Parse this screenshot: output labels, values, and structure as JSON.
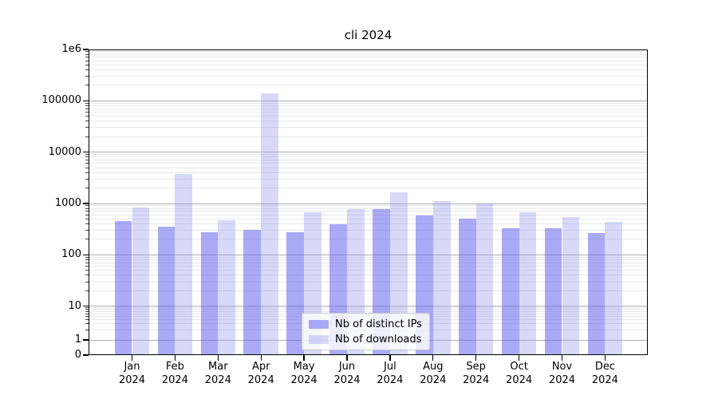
{
  "chart_data": {
    "type": "bar",
    "title": "cli 2024",
    "xlabel": "",
    "ylabel": "",
    "categories": [
      "Jan 2024",
      "Feb 2024",
      "Mar 2024",
      "Apr 2024",
      "May 2024",
      "Jun 2024",
      "Jul 2024",
      "Aug 2024",
      "Sep 2024",
      "Oct 2024",
      "Nov 2024",
      "Dec 2024"
    ],
    "series": [
      {
        "name": "Nb of distinct IPs",
        "color": "#5c5ced",
        "alpha": 0.52,
        "values": [
          450,
          350,
          280,
          310,
          280,
          390,
          780,
          580,
          510,
          330,
          330,
          270
        ]
      },
      {
        "name": "Nb of downloads",
        "color": "#9696f0",
        "alpha": 0.37,
        "values": [
          840,
          3700,
          470,
          140000,
          670,
          790,
          1640,
          1100,
          1000,
          670,
          545,
          440
        ]
      }
    ],
    "yscale": "symlog",
    "ylim": [
      0,
      1000000
    ],
    "yticks": {
      "values": [
        0,
        1,
        10,
        100,
        1000,
        10000,
        100000,
        1000000
      ],
      "labels": [
        "0",
        "1",
        "10",
        "100",
        "1000",
        "10000",
        "100000",
        "1e6"
      ]
    },
    "grid": {
      "major": true,
      "minor": true,
      "major_color": "#b0b0b0",
      "minor_color": "#e8e8e8"
    },
    "legend": {
      "location": "lower center",
      "entries": [
        "Nb of distinct IPs",
        "Nb of downloads"
      ]
    }
  }
}
